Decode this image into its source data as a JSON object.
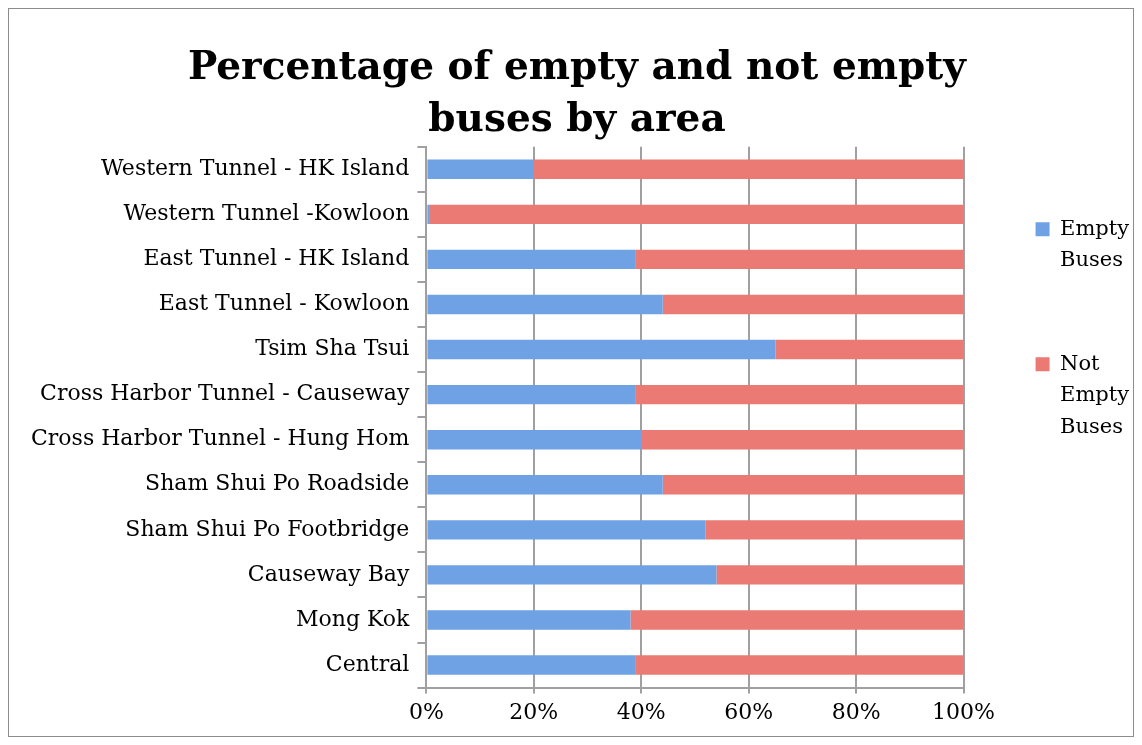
{
  "chart_data": {
    "type": "bar",
    "title": "Percentage of empty and not empty buses by area",
    "categories": [
      "Western Tunnel - HK Island",
      "Western Tunnel -Kowloon",
      "East Tunnel - HK Island",
      "East Tunnel - Kowloon",
      "Tsim Sha Tsui",
      "Cross Harbor Tunnel - Causeway",
      "Cross Harbor Tunnel - Hung Hom",
      "Sham Shui Po Roadside",
      "Sham Shui Po Footbridge",
      "Causeway Bay",
      "Mong Kok",
      "Central"
    ],
    "series": [
      {
        "name": "Empty Buses",
        "color": "#6ea2e4",
        "values": [
          20,
          0.5,
          39,
          44,
          65,
          39,
          40,
          44,
          52,
          54,
          38,
          39
        ]
      },
      {
        "name": "Not Empty Buses",
        "color": "#ea7a73",
        "values": [
          80,
          99.5,
          61,
          56,
          35,
          61,
          60,
          56,
          48,
          46,
          62,
          61
        ]
      }
    ],
    "stacked": true,
    "orientation": "horizontal",
    "xlim": [
      0,
      100
    ],
    "xticks": [
      {
        "value": 0,
        "label": "0%"
      },
      {
        "value": 20,
        "label": "20%"
      },
      {
        "value": 40,
        "label": "40%"
      },
      {
        "value": 60,
        "label": "60%"
      },
      {
        "value": 80,
        "label": "80%"
      },
      {
        "value": 100,
        "label": "100%"
      }
    ],
    "grid": "x",
    "legend": "right"
  }
}
